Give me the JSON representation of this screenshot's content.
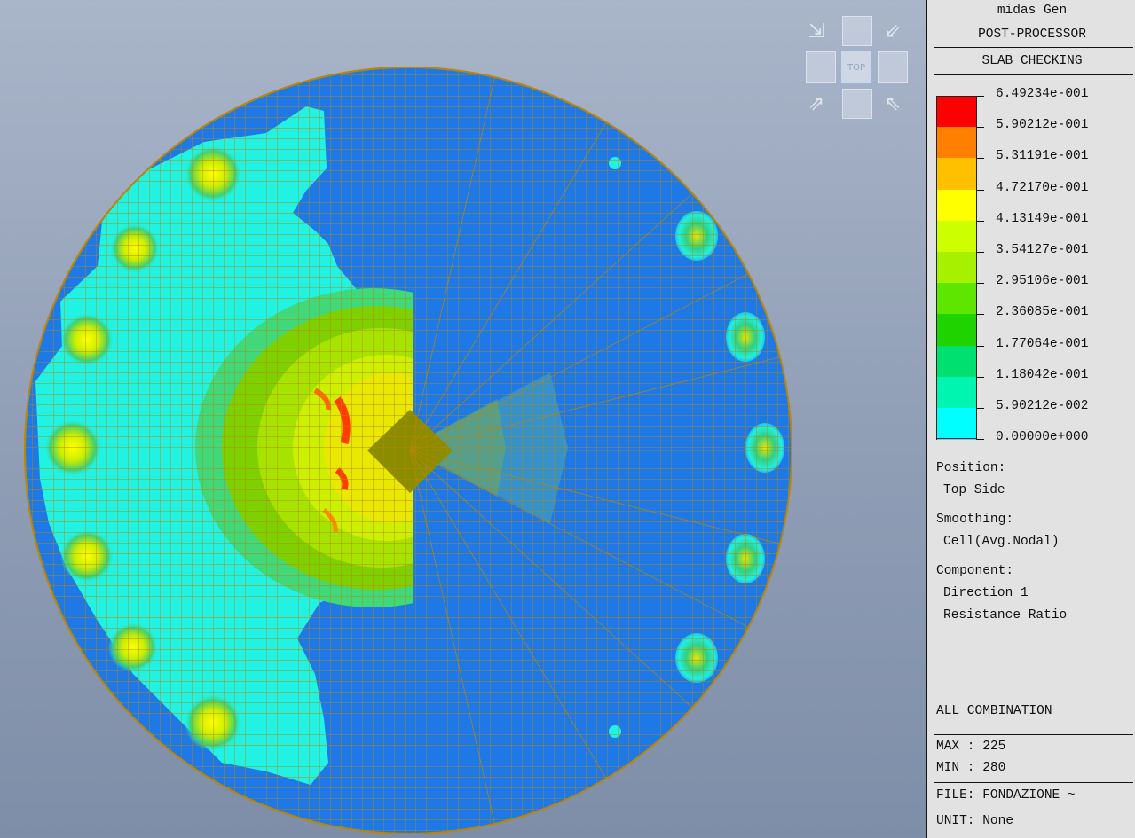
{
  "app": {
    "name": "midas Gen",
    "mode": "POST-PROCESSOR",
    "result_type": "SLAB CHECKING"
  },
  "view_cube": {
    "face_label": "TOP"
  },
  "legend": {
    "values": [
      "6.49234e-001",
      "5.90212e-001",
      "5.31191e-001",
      "4.72170e-001",
      "4.13149e-001",
      "3.54127e-001",
      "2.95106e-001",
      "2.36085e-001",
      "1.77064e-001",
      "1.18042e-001",
      "5.90212e-002",
      "0.00000e+000"
    ],
    "colors": [
      "#ff0000",
      "#ff7f00",
      "#ffc000",
      "#ffff00",
      "#ccff00",
      "#a6f000",
      "#5ee600",
      "#1fd300",
      "#00e070",
      "#00f5b0",
      "#00ffff",
      "#1a6ef0"
    ]
  },
  "info": {
    "position_label": "Position:",
    "position_value": "Top Side",
    "smoothing_label": "Smoothing:",
    "smoothing_value": "Cell(Avg.Nodal)",
    "component_label": "Component:",
    "component_value_1": "Direction 1",
    "component_value_2": "Resistance Ratio",
    "load_case": "ALL COMBINATION",
    "max": "MAX : 225",
    "min": "MIN : 280",
    "file": "FILE: FONDAZIONE ~",
    "unit": "UNIT: None"
  },
  "contour_colors": {
    "zero": "#1e78e6",
    "low": "#20f0e0",
    "mid_low": "#30d080",
    "mid": "#7fd000",
    "high": "#e6e600",
    "max": "#ff3b00",
    "mesh": "#b8860b",
    "core": "#8c8c00"
  }
}
